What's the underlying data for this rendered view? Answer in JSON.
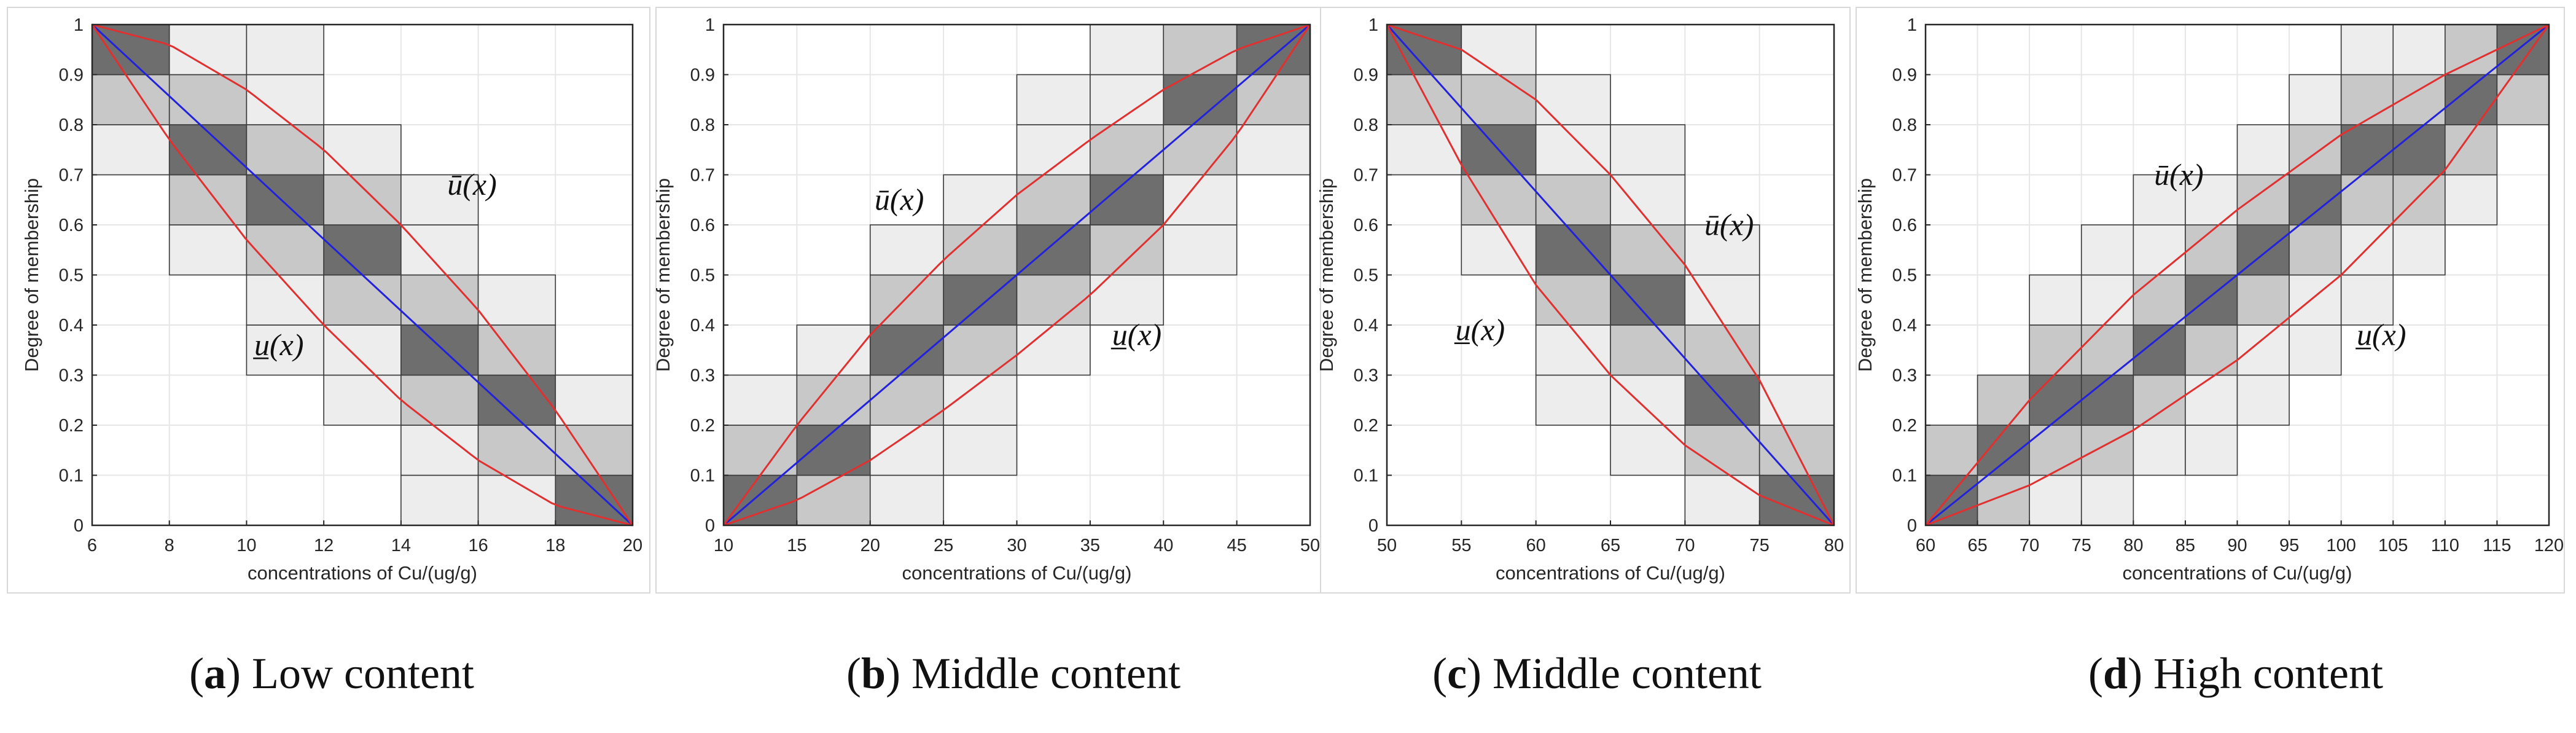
{
  "chart_data": [
    {
      "type": "line",
      "caption_letter": "a",
      "caption_text": "Low content",
      "xlabel": "concentrations of Cu/(ug/g)",
      "ylabel": "Degree of membership",
      "xlim": [
        6,
        20
      ],
      "ylim": [
        0,
        1
      ],
      "xticks": [
        "6",
        "8",
        "10",
        "12",
        "14",
        "16",
        "18",
        "20"
      ],
      "yticks": [
        "0",
        "0.1",
        "0.2",
        "0.3",
        "0.4",
        "0.5",
        "0.6",
        "0.7",
        "0.8",
        "0.9",
        "1"
      ],
      "grid": true,
      "decreasing": true,
      "step": 2,
      "series": [
        {
          "role": "center",
          "color": "#2222dd",
          "x": [
            6,
            20
          ],
          "y": [
            1,
            0
          ]
        },
        {
          "role": "upper",
          "color": "#e03030",
          "x": [
            6,
            8,
            10,
            12,
            14,
            16,
            18,
            20
          ],
          "y": [
            1,
            0.96,
            0.87,
            0.75,
            0.6,
            0.43,
            0.23,
            0
          ]
        },
        {
          "role": "lower",
          "color": "#e03030",
          "x": [
            6,
            8,
            10,
            12,
            14,
            16,
            18,
            20
          ],
          "y": [
            1,
            0.77,
            0.57,
            0.4,
            0.25,
            0.13,
            0.04,
            0
          ]
        }
      ],
      "annotations": [
        {
          "text": "ū(x)",
          "x": 15.2,
          "y": 0.66
        },
        {
          "text": "u̲(x)",
          "x": 10.2,
          "y": 0.34
        }
      ]
    },
    {
      "type": "line",
      "caption_letter": "b",
      "caption_text": "Middle content",
      "xlabel": "concentrations of Cu/(ug/g)",
      "ylabel": "Degree of membership",
      "xlim": [
        10,
        50
      ],
      "ylim": [
        0,
        1
      ],
      "xticks": [
        "10",
        "15",
        "20",
        "25",
        "30",
        "35",
        "40",
        "45",
        "50"
      ],
      "yticks": [
        "0",
        "0.1",
        "0.2",
        "0.3",
        "0.4",
        "0.5",
        "0.6",
        "0.7",
        "0.8",
        "0.9",
        "1"
      ],
      "grid": true,
      "decreasing": false,
      "step": 5,
      "series": [
        {
          "role": "center",
          "color": "#2222dd",
          "x": [
            10,
            50
          ],
          "y": [
            0,
            1
          ]
        },
        {
          "role": "upper",
          "color": "#e03030",
          "x": [
            10,
            15,
            20,
            25,
            30,
            35,
            40,
            45,
            50
          ],
          "y": [
            0,
            0.2,
            0.38,
            0.53,
            0.66,
            0.77,
            0.87,
            0.95,
            1
          ]
        },
        {
          "role": "lower",
          "color": "#e03030",
          "x": [
            10,
            15,
            20,
            25,
            30,
            35,
            40,
            45,
            50
          ],
          "y": [
            0,
            0.05,
            0.13,
            0.23,
            0.34,
            0.46,
            0.6,
            0.78,
            1
          ]
        }
      ],
      "annotations": [
        {
          "text": "ū(x)",
          "x": 20.3,
          "y": 0.63
        },
        {
          "text": "u̲(x)",
          "x": 36.5,
          "y": 0.36
        }
      ]
    },
    {
      "type": "line",
      "caption_letter": "c",
      "caption_text": "Middle content",
      "xlabel": "concentrations of Cu/(ug/g)",
      "ylabel": "Degree of membership",
      "xlim": [
        50,
        80
      ],
      "ylim": [
        0,
        1
      ],
      "xticks": [
        "50",
        "55",
        "60",
        "65",
        "70",
        "75",
        "80"
      ],
      "yticks": [
        "0",
        "0.1",
        "0.2",
        "0.3",
        "0.4",
        "0.5",
        "0.6",
        "0.7",
        "0.8",
        "0.9",
        "1"
      ],
      "grid": true,
      "decreasing": true,
      "step": 5,
      "series": [
        {
          "role": "center",
          "color": "#2222dd",
          "x": [
            50,
            80
          ],
          "y": [
            1,
            0
          ]
        },
        {
          "role": "upper",
          "color": "#e03030",
          "x": [
            50,
            55,
            60,
            65,
            70,
            75,
            80
          ],
          "y": [
            1,
            0.95,
            0.85,
            0.7,
            0.52,
            0.29,
            0
          ]
        },
        {
          "role": "lower",
          "color": "#e03030",
          "x": [
            50,
            55,
            60,
            65,
            70,
            75,
            80
          ],
          "y": [
            1,
            0.72,
            0.48,
            0.3,
            0.16,
            0.06,
            0
          ]
        }
      ],
      "annotations": [
        {
          "text": "ū(x)",
          "x": 71.3,
          "y": 0.58
        },
        {
          "text": "u̲(x)",
          "x": 54.6,
          "y": 0.37
        }
      ]
    },
    {
      "type": "line",
      "caption_letter": "d",
      "caption_text": "High content",
      "xlabel": "concentrations of Cu/(ug/g)",
      "ylabel": "Degree of membership",
      "xlim": [
        60,
        120
      ],
      "ylim": [
        0,
        1
      ],
      "xticks": [
        "60",
        "65",
        "70",
        "75",
        "80",
        "85",
        "90",
        "95",
        "100",
        "105",
        "110",
        "115",
        "120"
      ],
      "yticks": [
        "0",
        "0.1",
        "0.2",
        "0.3",
        "0.4",
        "0.5",
        "0.6",
        "0.7",
        "0.8",
        "0.9",
        "1"
      ],
      "grid": true,
      "decreasing": false,
      "step": 5,
      "series": [
        {
          "role": "center",
          "color": "#2222dd",
          "x": [
            60,
            120
          ],
          "y": [
            0,
            1
          ]
        },
        {
          "role": "upper",
          "color": "#e03030",
          "x": [
            60,
            70,
            80,
            90,
            100,
            110,
            120
          ],
          "y": [
            0,
            0.25,
            0.46,
            0.63,
            0.78,
            0.9,
            1
          ]
        },
        {
          "role": "lower",
          "color": "#e03030",
          "x": [
            60,
            70,
            80,
            90,
            100,
            110,
            120
          ],
          "y": [
            0,
            0.08,
            0.19,
            0.33,
            0.5,
            0.71,
            1
          ]
        }
      ],
      "annotations": [
        {
          "text": "ū(x)",
          "x": 82,
          "y": 0.68
        },
        {
          "text": "u̲(x)",
          "x": 101.5,
          "y": 0.36
        }
      ]
    }
  ]
}
